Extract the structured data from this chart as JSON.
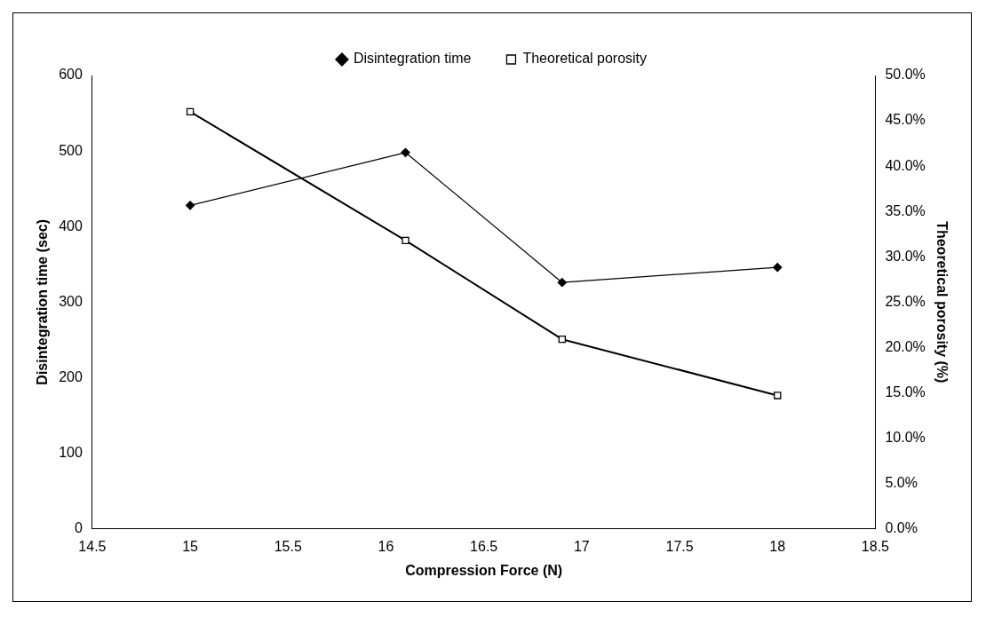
{
  "chart_data": {
    "type": "line",
    "xlabel": "Compression Force (N)",
    "ylabel": "Disintegration time (sec)",
    "y2label": "Theoretical porosity (%)",
    "x": [
      15,
      16.1,
      16.9,
      18
    ],
    "series": [
      {
        "name": "Disintegration time",
        "color": "#000000",
        "marker": "diamond",
        "values": [
          428,
          498,
          326,
          346
        ]
      },
      {
        "name": "Theoretical porosity",
        "color": "#000000",
        "marker": "square",
        "axis": "y2",
        "values": [
          46.0,
          31.8,
          20.9,
          14.7
        ]
      }
    ],
    "xlim": [
      14.5,
      18.5
    ],
    "xticks": [
      14.5,
      15,
      15.5,
      16,
      16.5,
      17,
      17.5,
      18,
      18.5
    ],
    "ylim": [
      0,
      600
    ],
    "yticks": [
      0,
      100,
      200,
      300,
      400,
      500,
      600
    ],
    "y2lim": [
      0,
      50
    ],
    "y2ticks": [
      {
        "value": 0,
        "label": "0.0%"
      },
      {
        "value": 5,
        "label": "5.0%"
      },
      {
        "value": 10,
        "label": "10.0%"
      },
      {
        "value": 15,
        "label": "15.0%"
      },
      {
        "value": 20,
        "label": "20.0%"
      },
      {
        "value": 25,
        "label": "25.0%"
      },
      {
        "value": 30,
        "label": "30.0%"
      },
      {
        "value": 35,
        "label": "35.0%"
      },
      {
        "value": 40,
        "label": "40.0%"
      },
      {
        "value": 45,
        "label": "45.0%"
      },
      {
        "value": 50,
        "label": "50.0%"
      }
    ],
    "grid": false,
    "legend": "top",
    "line_style": "solid"
  }
}
